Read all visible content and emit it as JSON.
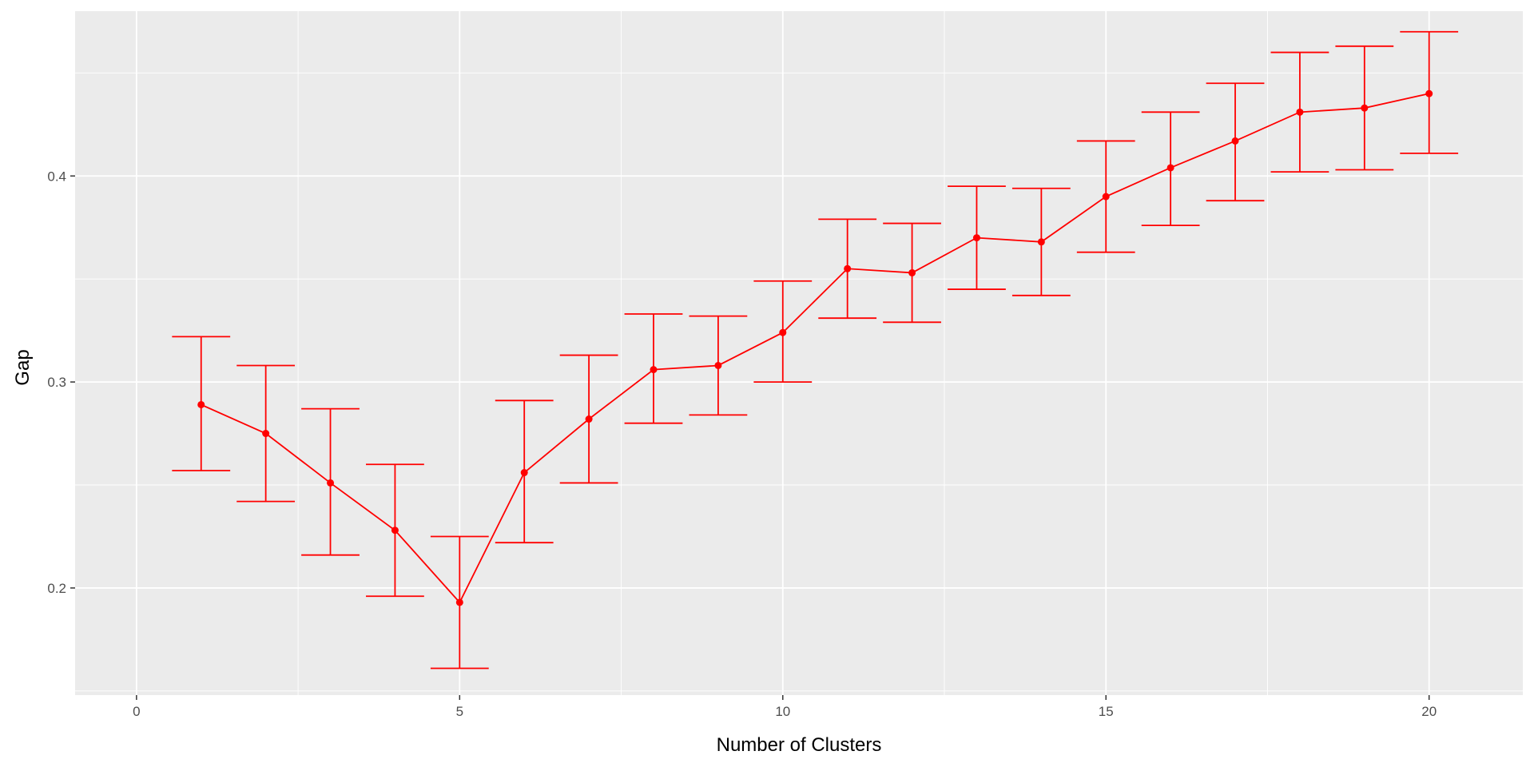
{
  "chart_data": {
    "type": "line",
    "xlabel": "Number of Clusters",
    "ylabel": "Gap",
    "xlim": [
      -0.95,
      21.45
    ],
    "ylim": [
      0.148,
      0.48
    ],
    "x_ticks": [
      0,
      5,
      10,
      15,
      20
    ],
    "x_tick_labels": [
      "0",
      "5",
      "10",
      "15",
      "20"
    ],
    "y_ticks": [
      0.2,
      0.3,
      0.4
    ],
    "y_tick_labels": [
      "0.2",
      "0.3",
      "0.4"
    ],
    "grid": true,
    "legend": "none",
    "series": [
      {
        "color": "#ff0000",
        "x": [
          1,
          2,
          3,
          4,
          5,
          6,
          7,
          8,
          9,
          10,
          11,
          12,
          13,
          14,
          15,
          16,
          17,
          18,
          19,
          20
        ],
        "y": [
          0.289,
          0.275,
          0.251,
          0.228,
          0.193,
          0.256,
          0.282,
          0.306,
          0.308,
          0.324,
          0.355,
          0.353,
          0.37,
          0.368,
          0.39,
          0.404,
          0.417,
          0.431,
          0.433,
          0.44
        ],
        "ymin": [
          0.257,
          0.242,
          0.216,
          0.196,
          0.161,
          0.222,
          0.251,
          0.28,
          0.284,
          0.3,
          0.331,
          0.329,
          0.345,
          0.342,
          0.363,
          0.376,
          0.388,
          0.402,
          0.403,
          0.411
        ],
        "ymax": [
          0.322,
          0.308,
          0.287,
          0.26,
          0.225,
          0.291,
          0.313,
          0.333,
          0.332,
          0.349,
          0.379,
          0.377,
          0.395,
          0.394,
          0.417,
          0.431,
          0.445,
          0.46,
          0.463,
          0.47
        ]
      }
    ]
  },
  "colors": {
    "panel_background": "#ebebeb",
    "grid_major": "#ffffff",
    "series": "#ff0000",
    "tick_text": "#4d4d4d",
    "axis_title": "#000000"
  }
}
